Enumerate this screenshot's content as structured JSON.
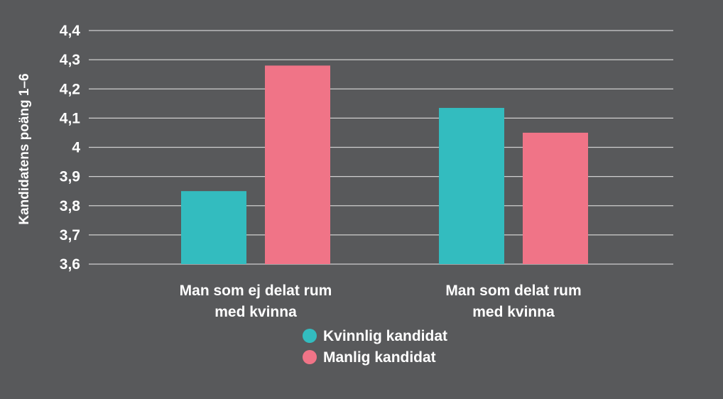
{
  "colors": {
    "background": "#58595b",
    "grid": "#cfcfcf",
    "text": "#ffffff"
  },
  "chart_data": {
    "type": "bar",
    "categories": [
      [
        "Man som ej delat rum",
        "med kvinna"
      ],
      [
        "Man som delat rum",
        "med kvinna"
      ]
    ],
    "series": [
      {
        "name": "Kvinnlig kandidat",
        "color": "#33bcbf",
        "values": [
          3.85,
          4.135
        ]
      },
      {
        "name": "Manlig kandidat",
        "color": "#f07487",
        "values": [
          4.28,
          4.05
        ]
      }
    ],
    "ylabel": "Kandidatens poäng 1–6",
    "xlabel": "",
    "ylim": [
      3.6,
      4.4
    ],
    "yticks": [
      "3,6",
      "3,7",
      "3,8",
      "3,9",
      "4",
      "4,1",
      "4,2",
      "4,3",
      "4,4"
    ],
    "grid": true,
    "legend": "bottom-center"
  }
}
